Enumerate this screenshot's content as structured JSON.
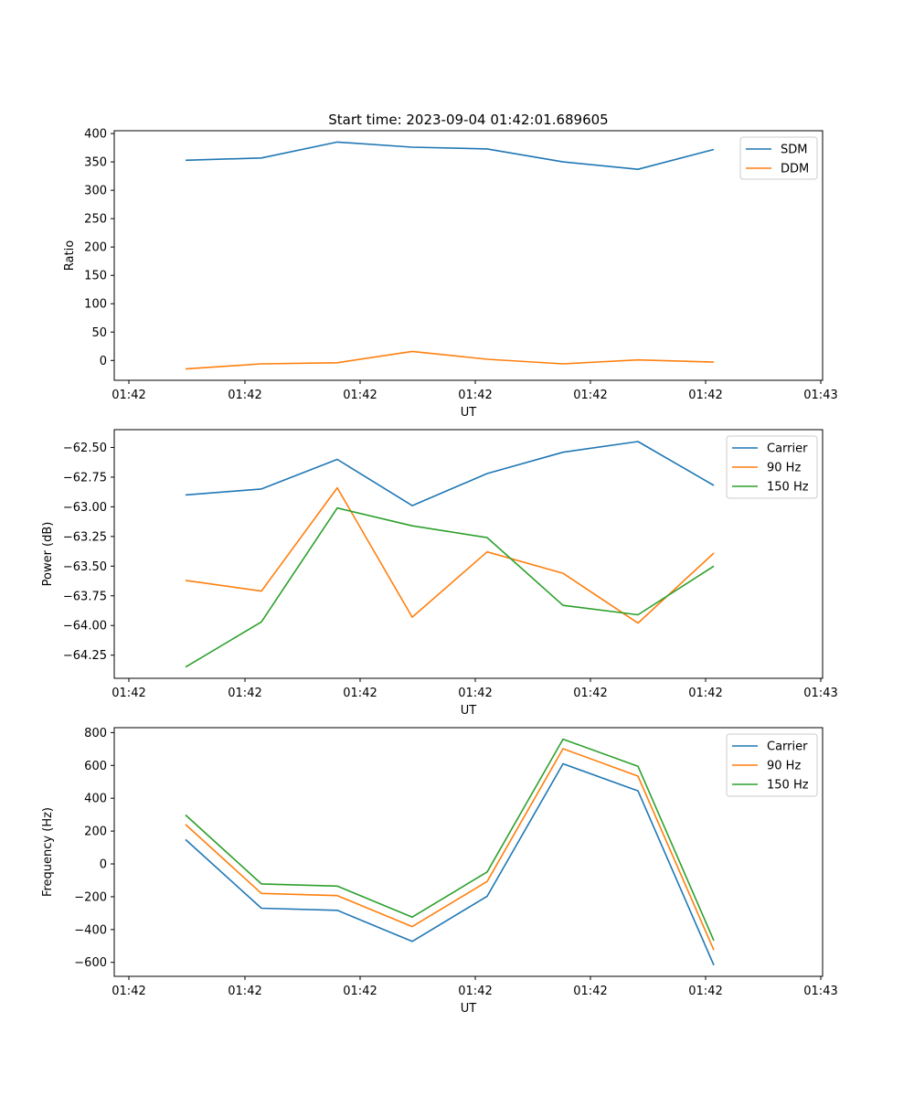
{
  "chart_data": [
    {
      "type": "line",
      "title": "Start time: 2023-09-04 01:42:01.689605",
      "xlabel": "UT",
      "ylabel": "Ratio",
      "x_tick_labels": [
        "01:42",
        "01:42",
        "01:42",
        "01:42",
        "01:42",
        "01:42",
        "01:43"
      ],
      "y_ticks": [
        0,
        50,
        100,
        150,
        200,
        250,
        300,
        350,
        400
      ],
      "ylim": [
        -35,
        405
      ],
      "legend_loc": "upper-right",
      "series": [
        {
          "name": "SDM",
          "color": "#1f77b4",
          "values": [
            353,
            357,
            385,
            376,
            373,
            350,
            337,
            372
          ]
        },
        {
          "name": "DDM",
          "color": "#ff7f0e",
          "values": [
            -15,
            -6,
            -4,
            16,
            2,
            -6,
            1,
            -3
          ]
        }
      ]
    },
    {
      "type": "line",
      "title": "",
      "xlabel": "UT",
      "ylabel": "Power (dB)",
      "x_tick_labels": [
        "01:42",
        "01:42",
        "01:42",
        "01:42",
        "01:42",
        "01:42",
        "01:43"
      ],
      "y_ticks": [
        -64.25,
        -64.0,
        -63.75,
        -63.5,
        -63.25,
        -63.0,
        -62.75,
        -62.5
      ],
      "y_tick_labels": [
        "−64.25",
        "−64.00",
        "−63.75",
        "−63.50",
        "−63.25",
        "−63.00",
        "−62.75",
        "−62.50"
      ],
      "ylim": [
        -64.445,
        -62.35
      ],
      "legend_loc": "upper-right",
      "series": [
        {
          "name": "Carrier",
          "color": "#1f77b4",
          "values": [
            -62.9,
            -62.85,
            -62.6,
            -62.99,
            -62.72,
            -62.54,
            -62.45,
            -62.82
          ]
        },
        {
          "name": "90 Hz",
          "color": "#ff7f0e",
          "values": [
            -63.62,
            -63.71,
            -62.84,
            -63.93,
            -63.38,
            -63.56,
            -63.98,
            -63.39
          ]
        },
        {
          "name": "150 Hz",
          "color": "#2ca02c",
          "values": [
            -64.35,
            -63.97,
            -63.01,
            -63.16,
            -63.26,
            -63.83,
            -63.91,
            -63.5
          ]
        }
      ]
    },
    {
      "type": "line",
      "title": "",
      "xlabel": "UT",
      "ylabel": "Frequency (Hz)",
      "x_tick_labels": [
        "01:42",
        "01:42",
        "01:42",
        "01:42",
        "01:42",
        "01:42",
        "01:43"
      ],
      "y_ticks": [
        -600,
        -400,
        -200,
        0,
        200,
        400,
        600,
        800
      ],
      "y_tick_labels": [
        "−600",
        "−400",
        "−200",
        "0",
        "200",
        "400",
        "600",
        "800"
      ],
      "ylim": [
        -685,
        830
      ],
      "legend_loc": "upper-right",
      "series": [
        {
          "name": "Carrier",
          "color": "#1f77b4",
          "values": [
            148,
            -270,
            -283,
            -472,
            -197,
            610,
            445,
            -617
          ]
        },
        {
          "name": "90 Hz",
          "color": "#ff7f0e",
          "values": [
            240,
            -180,
            -193,
            -382,
            -107,
            702,
            535,
            -525
          ]
        },
        {
          "name": "150 Hz",
          "color": "#2ca02c",
          "values": [
            298,
            -122,
            -135,
            -324,
            -49,
            760,
            595,
            -467
          ]
        }
      ]
    }
  ]
}
